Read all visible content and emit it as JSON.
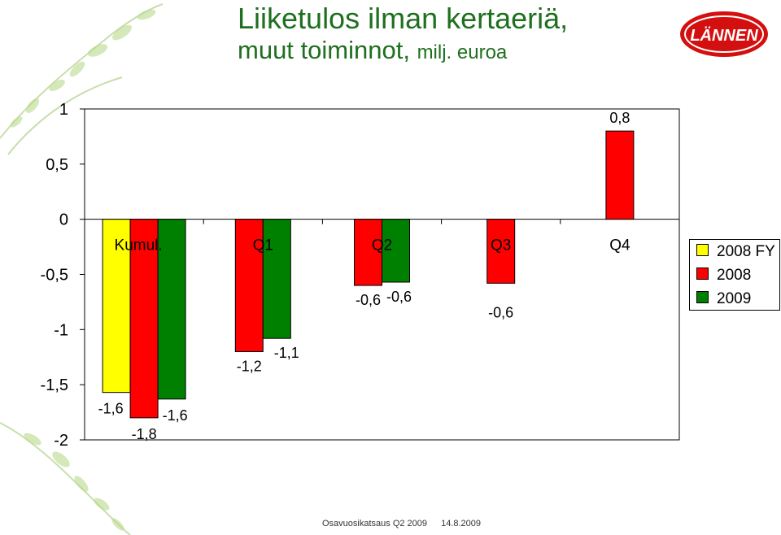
{
  "slide": {
    "title_line1": "Liiketulos ilman kertaeriä,",
    "title_line2": "muut toiminnot,",
    "title_unit": "milj. euroa",
    "logo_text": "LÄNNEN",
    "footer_left": "Osavuosikatsaus Q2 2009",
    "footer_date": "14.8.2009"
  },
  "chart_data": {
    "type": "bar",
    "title": "Liiketulos ilman kertaeriä, muut toiminnot, milj. euroa",
    "categories": [
      "Kumul.",
      "Q1",
      "Q2",
      "Q3",
      "Q4"
    ],
    "series": [
      {
        "name": "2008 FY",
        "color": "#ffff00",
        "values": [
          -1.57,
          null,
          null,
          null,
          null
        ],
        "labels": [
          "-1,6",
          "",
          "",
          "",
          ""
        ]
      },
      {
        "name": "2008",
        "color": "#ff0000",
        "values": [
          -1.8,
          -1.2,
          -0.6,
          -0.58,
          0.8
        ],
        "labels": [
          "-1,8",
          "-1,2",
          "-0,6",
          "-0,6",
          "0,8"
        ]
      },
      {
        "name": "2009",
        "color": "#008000",
        "values": [
          -1.63,
          -1.08,
          -0.57,
          null,
          null
        ],
        "labels": [
          "-1,6",
          "-1,1",
          "-0,6",
          "",
          ""
        ]
      }
    ],
    "y_ticks": [
      1,
      0.5,
      0,
      -0.5,
      -1,
      -1.5,
      -2
    ],
    "y_tick_labels": [
      "1",
      "0,5",
      "0",
      "-0,5",
      "-1",
      "-1,5",
      "-2"
    ],
    "ylim": [
      -2,
      1
    ],
    "grid": false,
    "legend_position": "right"
  }
}
